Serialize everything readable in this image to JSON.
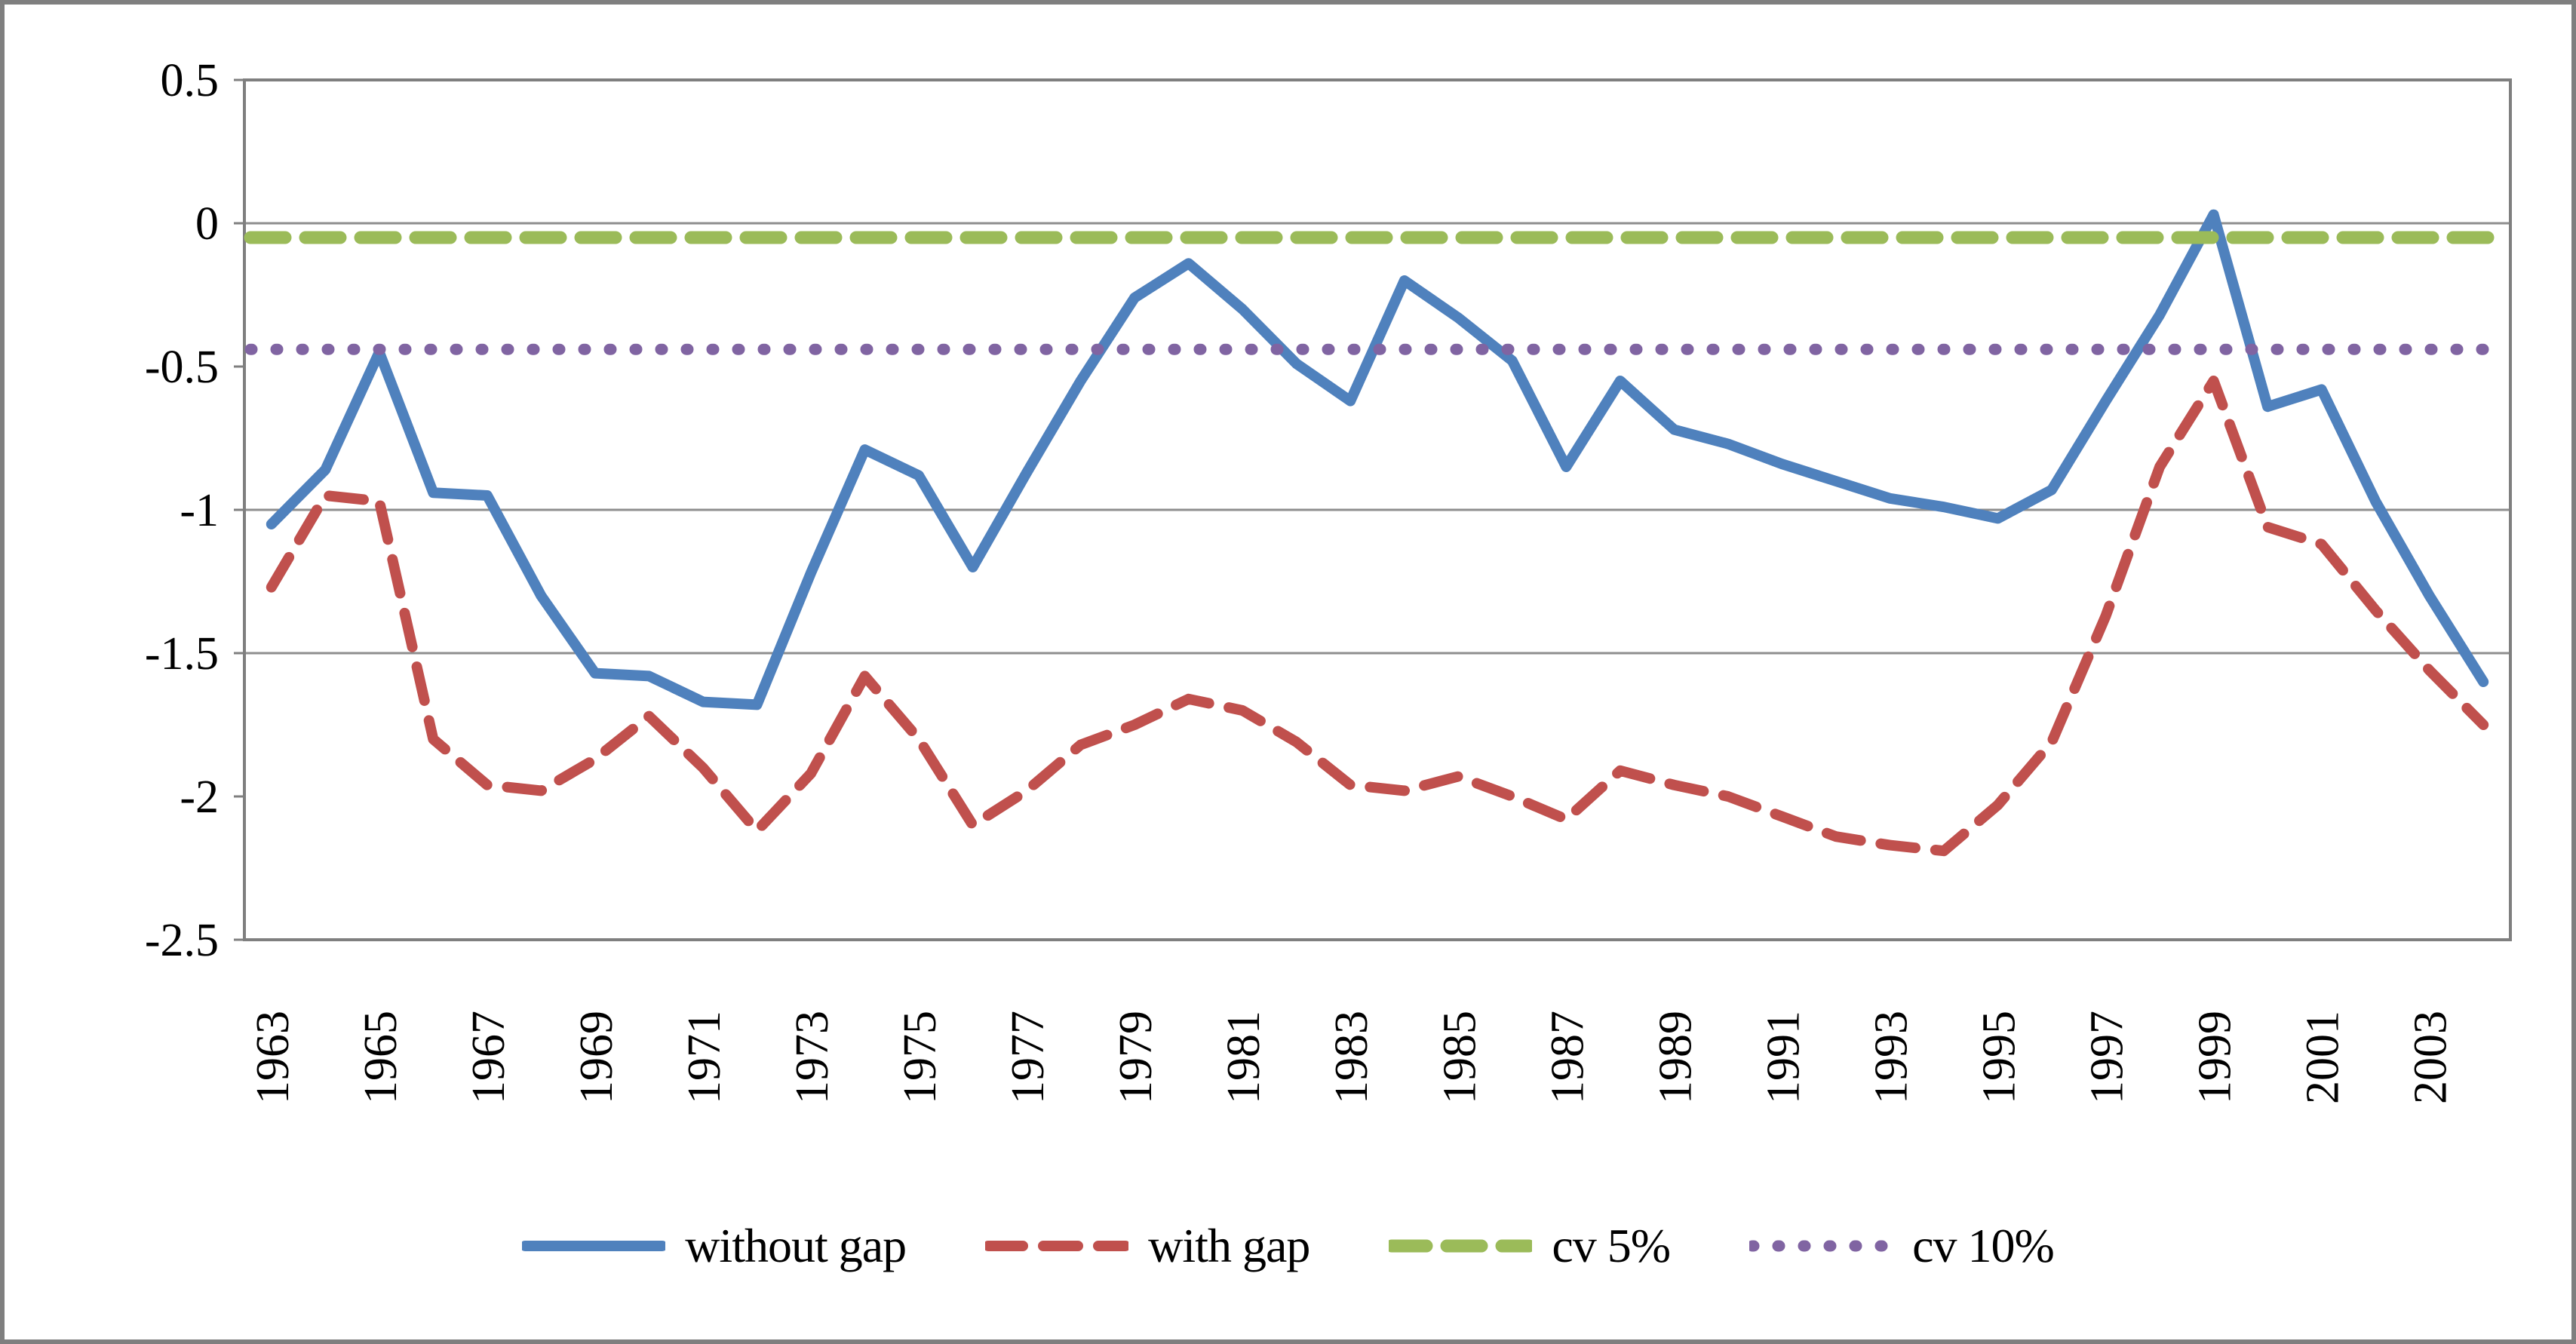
{
  "chart_data": {
    "type": "line",
    "title": "",
    "xlabel": "",
    "ylabel": "",
    "categories": [
      "1963",
      "1964",
      "1965",
      "1966",
      "1967",
      "1968",
      "1969",
      "1970",
      "1971",
      "1972",
      "1973",
      "1974",
      "1975",
      "1976",
      "1977",
      "1978",
      "1979",
      "1980",
      "1981",
      "1982",
      "1983",
      "1984",
      "1985",
      "1986",
      "1987",
      "1988",
      "1989",
      "1990",
      "1991",
      "1992",
      "1993",
      "1994",
      "1995",
      "1996",
      "1997",
      "1998",
      "1999",
      "2000",
      "2001",
      "2002",
      "2003",
      "2004"
    ],
    "x_tick_labels": [
      "1963",
      "1965",
      "1967",
      "1969",
      "1971",
      "1973",
      "1975",
      "1977",
      "1979",
      "1981",
      "1983",
      "1985",
      "1987",
      "1989",
      "1991",
      "1993",
      "1995",
      "1997",
      "1999",
      "2001",
      "2003"
    ],
    "x_tick_every": 2,
    "ylim": [
      -2.5,
      0.5
    ],
    "y_ticks": [
      0.5,
      0,
      -0.5,
      -1,
      -1.5,
      -2,
      -2.5
    ],
    "y_tick_labels": [
      "0.5",
      "0",
      "-0.5",
      "-1",
      "-1.5",
      "-2",
      "-2.5"
    ],
    "gridlines_at": [
      0,
      -1,
      -1.5
    ],
    "grid_on": true,
    "legend_position": "bottom",
    "series": [
      {
        "name": "without gap",
        "style": "solid",
        "color": "#4f81bd",
        "values": [
          -1.05,
          -0.86,
          -0.45,
          -0.94,
          -0.95,
          -1.3,
          -1.57,
          -1.58,
          -1.67,
          -1.68,
          -1.22,
          -0.79,
          -0.88,
          -1.2,
          -0.87,
          -0.55,
          -0.26,
          -0.14,
          -0.3,
          -0.49,
          -0.62,
          -0.2,
          -0.33,
          -0.48,
          -0.85,
          -0.55,
          -0.72,
          -0.77,
          -0.84,
          -0.9,
          -0.96,
          -0.99,
          -1.03,
          -0.93,
          -0.62,
          -0.32,
          0.03,
          -0.64,
          -0.58,
          -0.97,
          -1.3,
          -1.6
        ]
      },
      {
        "name": "with gap",
        "style": "dashed",
        "color": "#c0504d",
        "values": [
          -1.27,
          -0.95,
          -0.97,
          -1.8,
          -1.96,
          -1.98,
          -1.87,
          -1.72,
          -1.9,
          -2.12,
          -1.92,
          -1.58,
          -1.8,
          -2.1,
          -1.98,
          -1.82,
          -1.75,
          -1.66,
          -1.7,
          -1.81,
          -1.96,
          -1.98,
          -1.93,
          -2.0,
          -2.08,
          -1.91,
          -1.96,
          -2.0,
          -2.07,
          -2.14,
          -2.17,
          -2.19,
          -2.03,
          -1.81,
          -1.37,
          -0.85,
          -0.55,
          -1.06,
          -1.12,
          -1.35,
          -1.56,
          -1.75
        ]
      },
      {
        "name": "cv 5%",
        "style": "dashed",
        "color": "#9bbb59",
        "constant": -0.05
      },
      {
        "name": "cv 10%",
        "style": "dotted",
        "color": "#8064a2",
        "constant": -0.44
      }
    ],
    "axis_color": "#7f7f7f",
    "gridline_color": "#8e8e8e",
    "tick_label_color": "#000000"
  }
}
